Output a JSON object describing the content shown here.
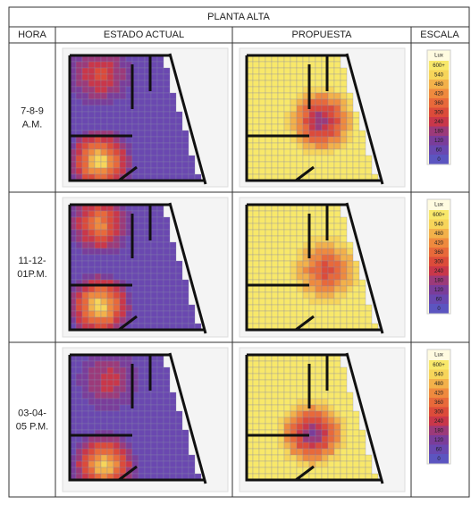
{
  "table": {
    "title": "PLANTA ALTA",
    "headers": [
      "HORA",
      "ESTADO ACTUAL",
      "PROPUESTA",
      "ESCALA"
    ],
    "rows": [
      {
        "hora": [
          "7-8-9",
          "A.M."
        ]
      },
      {
        "hora": [
          "11-12-",
          "01P.M."
        ]
      },
      {
        "hora": [
          "03-04-",
          "05 P.M."
        ]
      }
    ]
  },
  "scale": {
    "unit": "Lux",
    "labels": [
      "600+",
      "540",
      "480",
      "420",
      "360",
      "300",
      "240",
      "180",
      "120",
      "60",
      "0"
    ]
  }
}
